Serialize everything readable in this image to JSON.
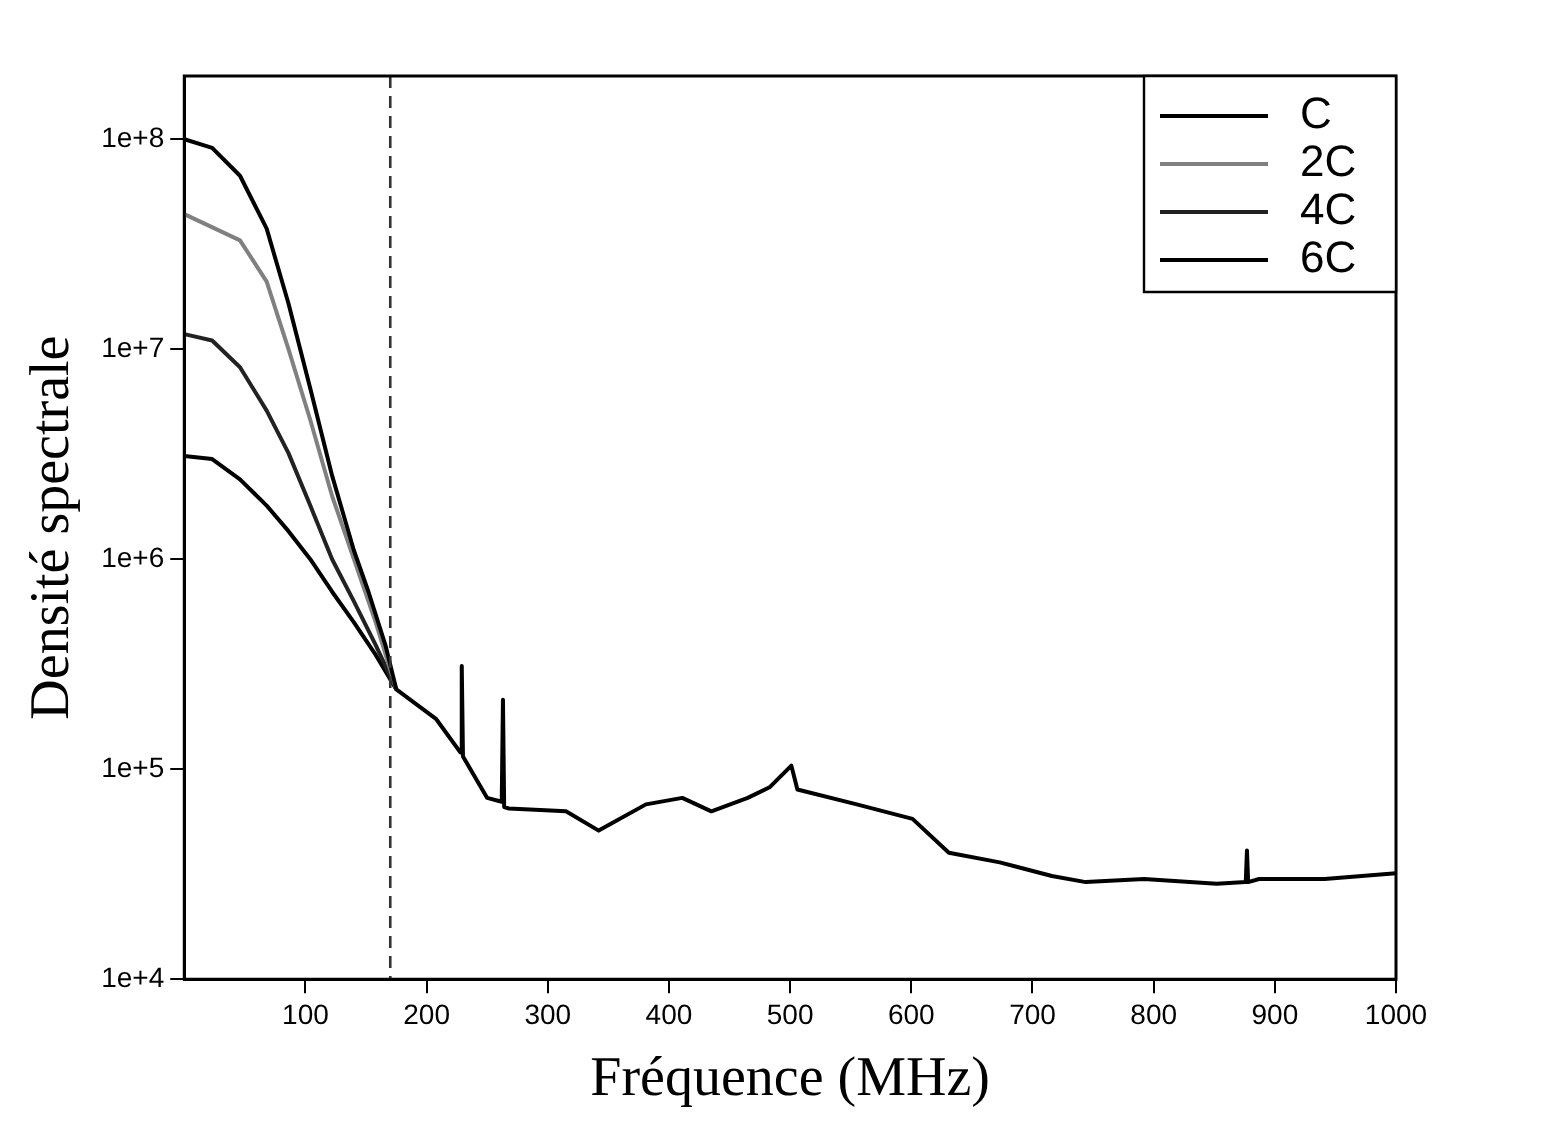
{
  "chart_data": {
    "type": "line",
    "xlabel": "Fréquence (MHz)",
    "ylabel": "Densité spectrale",
    "xlim": [
      0,
      1000
    ],
    "xticks": [
      100,
      200,
      300,
      400,
      500,
      600,
      700,
      800,
      900,
      1000
    ],
    "ylim": [
      10000,
      200000000
    ],
    "log": "y",
    "yticks": [
      {
        "value": 10000,
        "label": "1e+4"
      },
      {
        "value": 100000,
        "label": "1e+5"
      },
      {
        "value": 1000000,
        "label": "1e+6"
      },
      {
        "value": 10000000,
        "label": "1e+7"
      },
      {
        "value": 100000000,
        "label": "1e+8"
      }
    ],
    "grid": false,
    "legend": "top right",
    "marker": "none",
    "line_style": "solid",
    "ref_lines": [
      {
        "axis": "x",
        "value": 170,
        "line_style": "dashed",
        "color": "#333333"
      }
    ],
    "series": [
      {
        "name": "C",
        "color": "#000000",
        "x": [
          0,
          23,
          46,
          68,
          86,
          104,
          122,
          140,
          152,
          166,
          175,
          208,
          228,
          229,
          230,
          250,
          262,
          263,
          264,
          268,
          315,
          342,
          381,
          411,
          435,
          465,
          483,
          501,
          506,
          555,
          601,
          631,
          673,
          716,
          744,
          792,
          852,
          876,
          877,
          878,
          887,
          941,
          1000
        ],
        "values": [
          100000000,
          91000000,
          67000000,
          37500000,
          16500000,
          6500000,
          2500000,
          1100000,
          700000,
          390000,
          240000,
          173000,
          120000,
          310000,
          115000,
          73000,
          70000,
          214000,
          66000,
          65000,
          63000,
          51000,
          68000,
          73000,
          63000,
          73000,
          82000,
          104000,
          80000,
          68000,
          58000,
          40000,
          36000,
          31000,
          29000,
          30000,
          28500,
          29000,
          41000,
          29000,
          30000,
          30000,
          32000
        ]
      },
      {
        "name": "2C",
        "color": "#808080",
        "x": [
          0,
          46,
          68,
          86,
          104,
          122,
          140,
          158,
          175
        ],
        "values": [
          44000000,
          33000000,
          21000000,
          10000000,
          4600000,
          2000000,
          1000000,
          500000,
          240000
        ]
      },
      {
        "name": "4C",
        "color": "#222222",
        "x": [
          0,
          23,
          46,
          68,
          86,
          104,
          122,
          140,
          158,
          175
        ],
        "values": [
          11800000,
          11000000,
          8200000,
          5100000,
          3200000,
          1800000,
          1000000,
          630000,
          390000,
          240000
        ]
      },
      {
        "name": "6C",
        "color": "#000000",
        "x": [
          0,
          23,
          46,
          68,
          86,
          104,
          122,
          140,
          158,
          175
        ],
        "values": [
          3100000,
          3000000,
          2400000,
          1800000,
          1360000,
          1000000,
          700000,
          500000,
          350000,
          240000
        ]
      }
    ]
  }
}
